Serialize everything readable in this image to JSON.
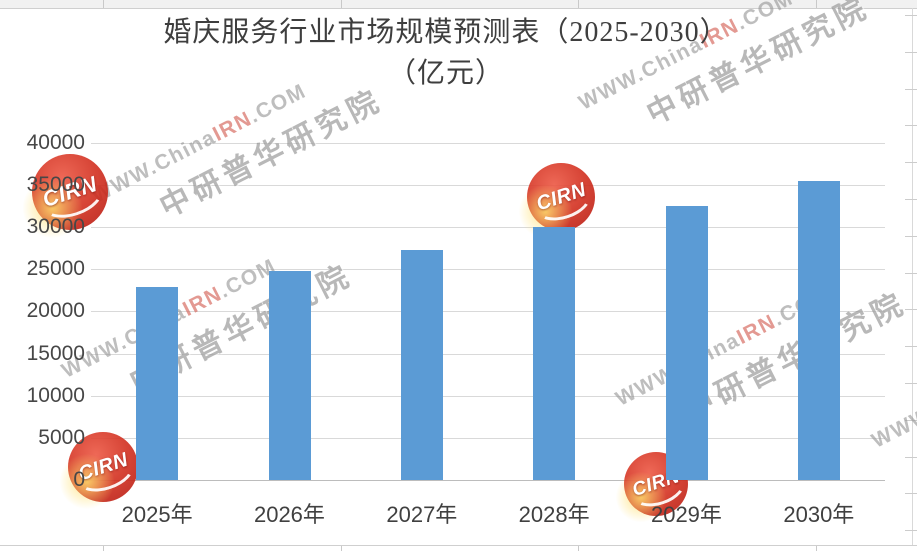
{
  "title": {
    "line1": "婚庆服务行业市场规模预测表（2025-2030）",
    "line2": "（亿元）"
  },
  "chart_data": {
    "type": "bar",
    "title": "婚庆服务行业市场规模预测表（2025-2030）（亿元）",
    "unit_label": "亿元",
    "categories": [
      "2025年",
      "2026年",
      "2027年",
      "2028年",
      "2029年",
      "2030年"
    ],
    "values": [
      22900,
      24800,
      27300,
      30000,
      32500,
      35500
    ],
    "ylim": [
      0,
      40000
    ],
    "yticks": [
      0,
      5000,
      10000,
      15000,
      20000,
      25000,
      30000,
      35000,
      40000
    ],
    "xlabel": "",
    "ylabel": "",
    "grid": true,
    "legend": "none",
    "bar_color": "#5B9BD5"
  },
  "watermark": {
    "url_pre": "WWW.China",
    "url_mid": "IRN",
    "url_post": ".COM",
    "url_full": "WWW.ChinaIRN.COM",
    "brand": "中研普华研究院",
    "logo_text": "CIRN"
  },
  "colors": {
    "bar": "#5B9BD5",
    "gridline": "#D9D9D9",
    "axis_line": "#BCBCBC",
    "tick_label": "#474747",
    "title_text": "#3E3E3E",
    "watermark_gray": "#969696",
    "watermark_logo_red": "#D23220"
  }
}
